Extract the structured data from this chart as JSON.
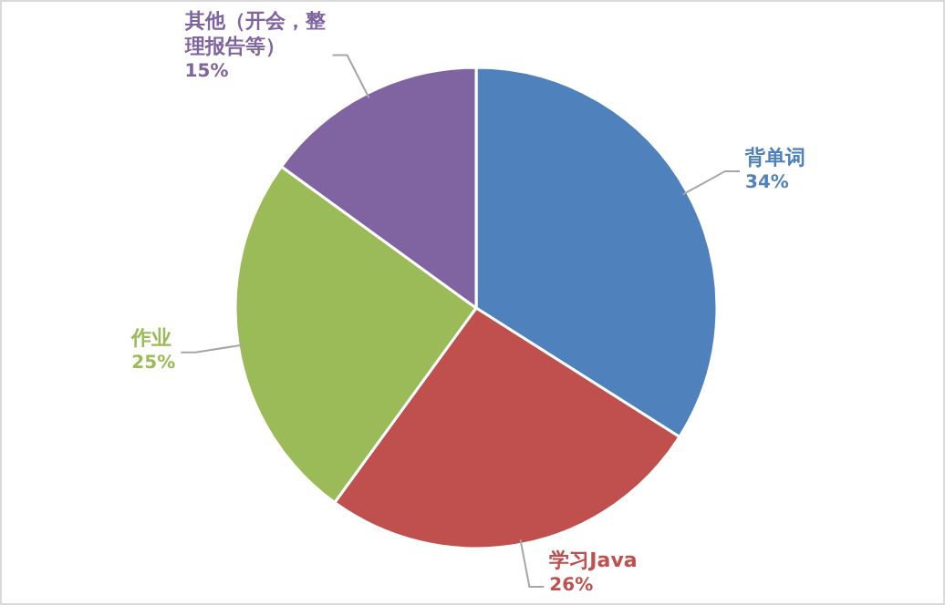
{
  "chart_data": {
    "type": "pie",
    "categories": [
      "背单词",
      "学习Java",
      "作业",
      "其他（开会，整理报告等）"
    ],
    "values": [
      34,
      26,
      25,
      15
    ],
    "value_labels": [
      "34%",
      "26%",
      "25%",
      "15%"
    ],
    "colors": [
      "#4f81bd",
      "#c0504d",
      "#9bbb59",
      "#8064a2"
    ]
  }
}
